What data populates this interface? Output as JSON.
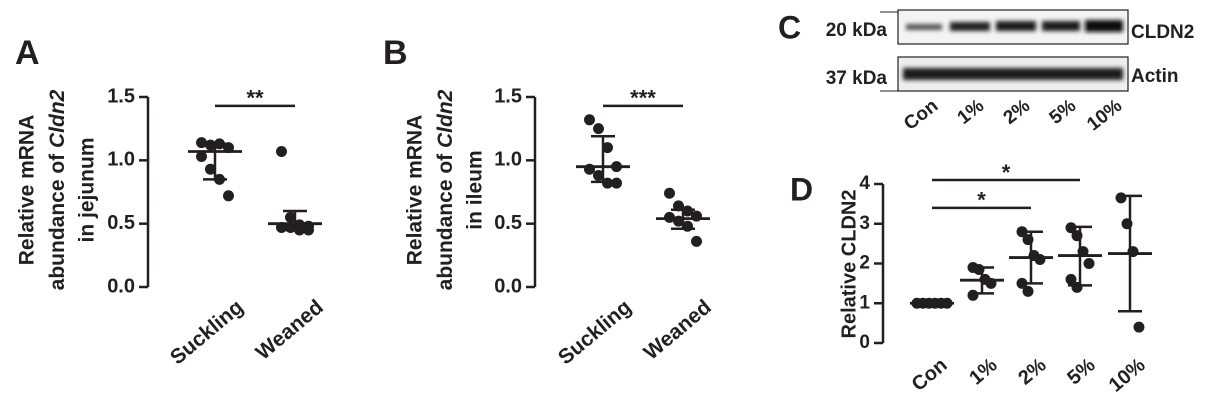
{
  "chart_data": [
    {
      "panel": "A",
      "type": "dotplot",
      "ylabel": [
        "Relative mRNA",
        [
          "abundance of ",
          "Cldn2"
        ],
        "in jejunum"
      ],
      "categories": [
        "Suckling",
        "Weaned"
      ],
      "groups": [
        [
          1.14,
          1.12,
          1.13,
          1.1,
          1.03,
          0.93,
          0.85,
          0.72
        ],
        [
          1.07,
          0.55,
          0.49,
          0.48,
          0.47,
          0.47,
          0.45,
          0.45
        ]
      ],
      "center": [
        1.07,
        0.5
      ],
      "upper": [
        1.13,
        0.6
      ],
      "lower": [
        0.85,
        0.45
      ],
      "ylim": [
        0,
        1.5
      ],
      "yticks": [
        {
          "value": 0,
          "label": "0.0"
        },
        0.5,
        {
          "value": 1,
          "label": "1.0"
        },
        1.5
      ],
      "significance": [
        {
          "pair": [
            0,
            1
          ],
          "y": 1.43,
          "label": "**"
        }
      ],
      "color": "#231f20"
    },
    {
      "panel": "B",
      "type": "dotplot",
      "ylabel": [
        "Relative mRNA",
        [
          "abundance of ",
          "Cldn2"
        ],
        "in ileum"
      ],
      "categories": [
        "Suckling",
        "Weaned"
      ],
      "groups": [
        [
          1.32,
          1.25,
          1.1,
          0.95,
          0.93,
          0.88,
          0.82,
          0.82
        ],
        [
          0.74,
          0.64,
          0.6,
          0.56,
          0.55,
          0.52,
          0.48,
          0.36
        ]
      ],
      "center": [
        0.95,
        0.54
      ],
      "upper": [
        1.19,
        0.61
      ],
      "lower": [
        0.83,
        0.46
      ],
      "ylim": [
        0,
        1.5
      ],
      "yticks": [
        {
          "value": 0,
          "label": "0.0"
        },
        0.5,
        {
          "value": 1,
          "label": "1.0"
        },
        1.5
      ],
      "significance": [
        {
          "pair": [
            0,
            1
          ],
          "y": 1.43,
          "label": "***"
        }
      ],
      "color": "#231f20"
    },
    {
      "panel": "D",
      "type": "dotplot",
      "ylabel": [
        "Relative CLDN2"
      ],
      "categories": [
        "Con",
        "1%",
        "2%",
        "5%",
        "10%"
      ],
      "groups": [
        [
          1,
          1,
          1,
          1,
          1,
          1
        ],
        [
          1.9,
          1.85,
          1.6,
          1.5,
          1.2
        ],
        [
          2.8,
          2.6,
          2.2,
          2.1,
          1.5,
          1.3
        ],
        [
          2.9,
          2.7,
          2.3,
          2.0,
          1.6,
          1.4
        ],
        [
          3.65,
          3.0,
          2.3,
          0.4
        ]
      ],
      "center": [
        1,
        1.58,
        2.15,
        2.2,
        2.25
      ],
      "upper": [
        1,
        1.9,
        2.8,
        2.92,
        3.7
      ],
      "lower": [
        1,
        1.25,
        1.5,
        1.45,
        0.8
      ],
      "ylim": [
        0,
        4
      ],
      "yticks": [
        0,
        1,
        2,
        3,
        4
      ],
      "significance": [
        {
          "pair": [
            0,
            2
          ],
          "y": 3.4,
          "label": "*"
        },
        {
          "pair": [
            0,
            3
          ],
          "y": 4.1,
          "label": "*"
        }
      ],
      "color": "#231f20"
    }
  ],
  "blot": {
    "panel": "C",
    "markers": [
      "20 kDa",
      "37 kDa"
    ],
    "proteins": [
      "CLDN2",
      "Actin"
    ],
    "lanes": [
      "Con",
      "1%",
      "2%",
      "5%",
      "10%"
    ]
  }
}
